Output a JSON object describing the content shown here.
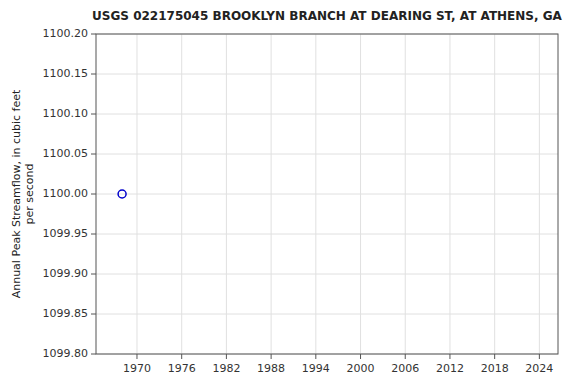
{
  "chart_data": {
    "type": "scatter",
    "title": "USGS 022175045 BROOKLYN BRANCH AT DEARING ST, AT ATHENS, GA",
    "ylabel": "Annual Peak Streamflow, in cubic feet\nper second",
    "x": [
      1968
    ],
    "values": [
      1100.0
    ],
    "color": "#0000cc",
    "marker": "circle",
    "xlim": [
      1964.5,
      2026.5
    ],
    "ylim": [
      1099.8,
      1100.2
    ],
    "xticks": [
      1970,
      1976,
      1982,
      1988,
      1994,
      2000,
      2006,
      2012,
      2018,
      2024
    ],
    "yticks": [
      {
        "value": 1099.8,
        "label": "1099.80"
      },
      1099.85,
      {
        "value": 1099.9,
        "label": "1099.90"
      },
      1099.95,
      {
        "value": 1100.0,
        "label": "1100.00"
      },
      1100.05,
      {
        "value": 1100.1,
        "label": "1100.10"
      },
      1100.15,
      {
        "value": 1100.2,
        "label": "1100.20"
      }
    ],
    "grid": true
  }
}
